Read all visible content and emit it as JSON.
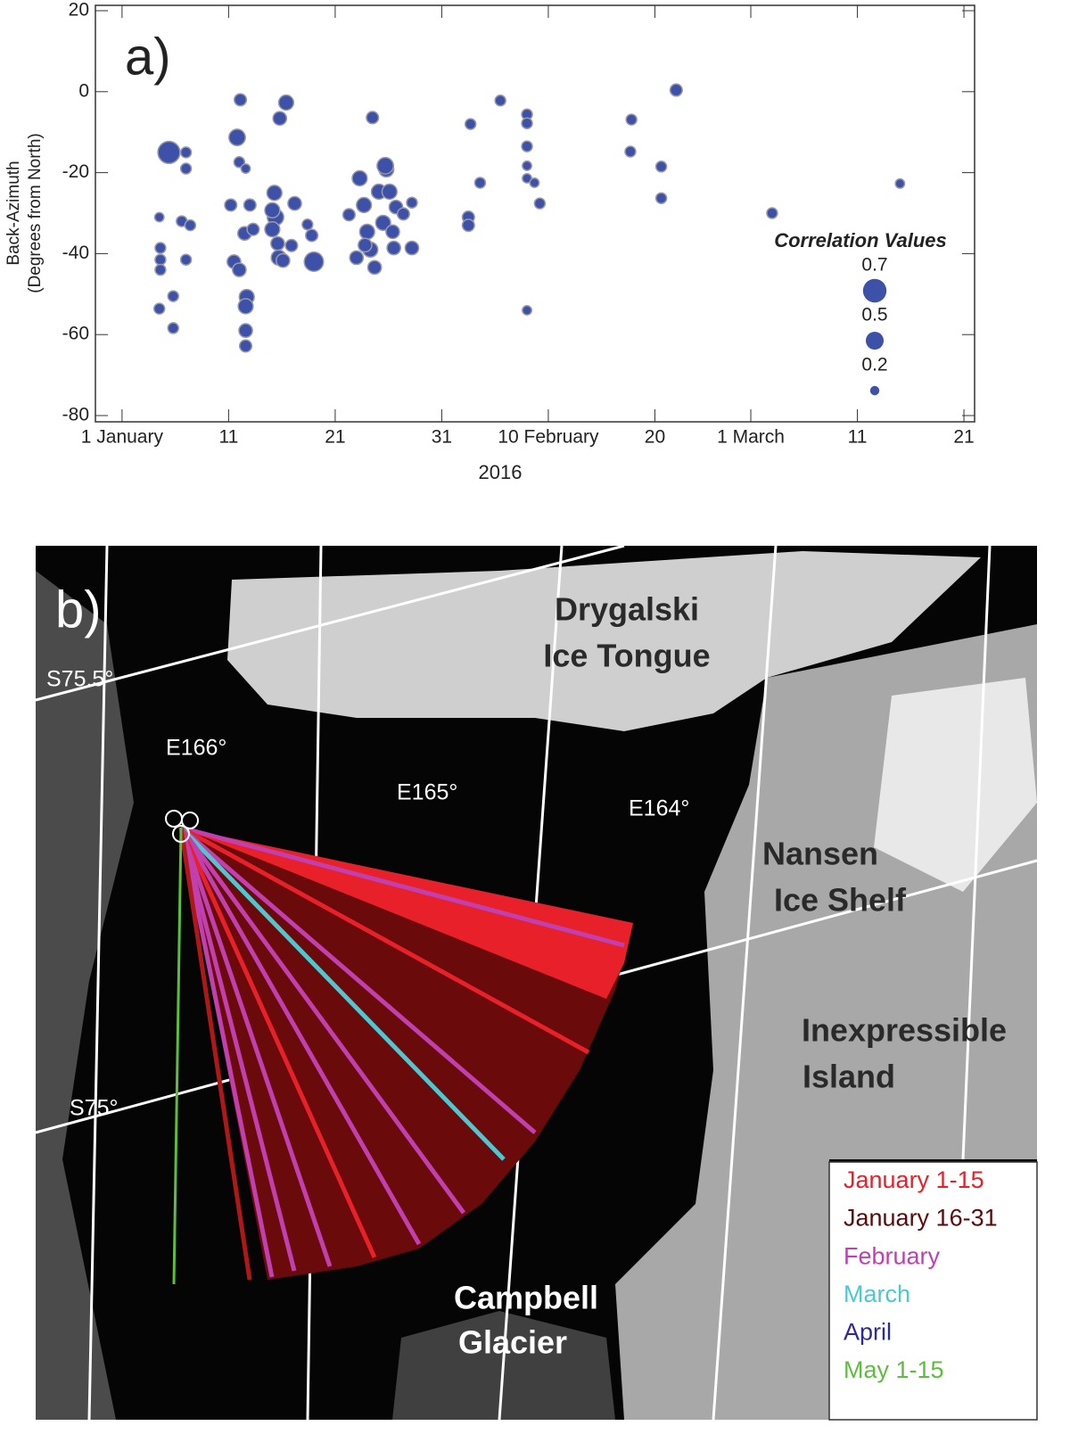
{
  "chart_data": {
    "type": "scatter",
    "panel_label": "a)",
    "y_label": [
      "Back-Azimuth",
      "(Degrees from North)"
    ],
    "x_label": "2016",
    "color": "#3d51a8",
    "x": [
      5.4,
      4.5,
      4.6,
      4.6,
      4.6,
      4.5,
      5.8,
      5.8,
      7.0,
      7.0,
      6.6,
      7.4,
      7.0,
      12.1,
      11.8,
      12.0,
      12.6,
      11.2,
      11.5,
      12.0,
      12.5,
      12.7,
      12.6,
      12.6,
      12.6,
      13.0,
      13.3,
      15.8,
      16.4,
      15.3,
      15.4,
      15.1,
      15.6,
      15.1,
      15.7,
      16.9,
      17.2,
      16.1,
      18.4,
      18.8,
      19.0,
      24.5,
      22.3,
      23.0,
      23.3,
      23.7,
      24.0,
      24.3,
      24.7,
      25.1,
      25.5,
      25.8,
      26.1,
      26.4,
      26.7,
      25.7,
      28.2,
      28.2,
      27.4,
      26.5,
      23.8,
      33.7,
      33.5,
      33.5,
      34.6,
      36.5,
      39.0,
      39.0,
      39.0,
      39.0,
      39.0,
      39.0,
      39.7,
      40.2,
      48.8,
      48.7,
      51.6,
      51.6,
      53.0,
      62.0,
      74.0
    ],
    "values": [
      -15,
      -31,
      -38.6,
      -41.5,
      -44,
      -53.6,
      -58.4,
      -50.5,
      -15,
      -19,
      -32,
      -33,
      -41.5,
      -2,
      -11.3,
      -17.4,
      -19,
      -28,
      -42,
      -44,
      -35,
      -50.7,
      -53,
      -59,
      -62.8,
      -28,
      -34,
      -6.6,
      -2.7,
      -25,
      -31,
      -34,
      -37.5,
      -29.3,
      -41,
      -38,
      -27.6,
      -41.7,
      -32.8,
      -35.5,
      -42,
      -6.4,
      -30.4,
      -41,
      -21.4,
      -28,
      -34.6,
      -39,
      -43.4,
      -24.7,
      -32.4,
      -19.2,
      -24.7,
      -34.6,
      -28.5,
      -18.3,
      -38.6,
      -27.4,
      -30.2,
      -38.6,
      -37.9,
      -8,
      -31,
      -33,
      -22.5,
      -2.2,
      -5.6,
      -7.8,
      -13.5,
      -18.3,
      -21.4,
      -54,
      -22.5,
      -27.6,
      -6.9,
      -14.8,
      -18.5,
      -26.3,
      0.4,
      -30,
      -22.7
    ],
    "sizes": [
      0.65,
      0.2,
      0.25,
      0.25,
      0.25,
      0.25,
      0.25,
      0.25,
      0.25,
      0.25,
      0.25,
      0.25,
      0.25,
      0.3,
      0.45,
      0.25,
      0.2,
      0.3,
      0.35,
      0.35,
      0.35,
      0.4,
      0.4,
      0.35,
      0.3,
      0.3,
      0.3,
      0.35,
      0.4,
      0.4,
      0.45,
      0.4,
      0.35,
      0.4,
      0.4,
      0.3,
      0.35,
      0.35,
      0.25,
      0.3,
      0.55,
      0.3,
      0.3,
      0.35,
      0.4,
      0.4,
      0.4,
      0.4,
      0.35,
      0.4,
      0.4,
      0.4,
      0.4,
      0.35,
      0.35,
      0.45,
      0.35,
      0.25,
      0.3,
      0.35,
      0.35,
      0.25,
      0.3,
      0.3,
      0.25,
      0.25,
      0.25,
      0.25,
      0.25,
      0.2,
      0.2,
      0.2,
      0.2,
      0.25,
      0.25,
      0.25,
      0.25,
      0.25,
      0.3,
      0.25,
      0.2
    ],
    "size_legend_title": "Correlation Values",
    "size_legend": [
      0.7,
      0.5,
      0.2
    ],
    "xlim": [
      -1.5,
      81
    ],
    "ylim": [
      -80,
      20
    ],
    "xticks": [
      {
        "value": 1,
        "label": "1 January"
      },
      11,
      21,
      31,
      {
        "value": 41,
        "label": "10 February"
      },
      {
        "value": 51,
        "label": "20"
      },
      {
        "value": 60,
        "label": "1 March"
      },
      {
        "value": 70,
        "label": "11"
      },
      {
        "value": 80,
        "label": "21"
      }
    ],
    "yticks": [
      -80,
      -60,
      -40,
      -20,
      0,
      20
    ]
  },
  "map": {
    "panel_label": "b)",
    "places": [
      {
        "lines": [
          "Drygalski",
          "Ice Tongue"
        ]
      },
      {
        "lines": [
          "Nansen",
          "Ice Shelf"
        ]
      },
      {
        "lines": [
          "Inexpressible",
          "Island"
        ]
      },
      {
        "lines": [
          "Campbell",
          "Glacier"
        ]
      }
    ],
    "grid_labels": [
      "S75.5°",
      "S75°",
      "E166°",
      "E165°",
      "E164°"
    ],
    "legend": [
      {
        "label": "January 1-15",
        "color": "#e8202a"
      },
      {
        "label": "January 16-31",
        "color": "#5a0a0a"
      },
      {
        "label": "February",
        "color": "#c040b0"
      },
      {
        "label": "March",
        "color": "#4cc8d0"
      },
      {
        "label": "April",
        "color": "#2a2a9a"
      },
      {
        "label": "May 1-15",
        "color": "#5cbf3c"
      }
    ]
  }
}
